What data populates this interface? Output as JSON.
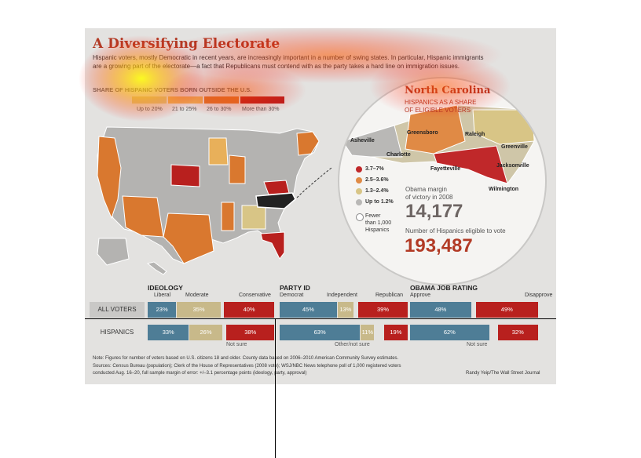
{
  "title": "A Diversifying Electorate",
  "intro": [
    "Hispanic voters, mostly Democratic in recent years, are increasingly important in a number of swing states. In particular, Hispanic immigrants",
    "are a growing part of the electorate—a fact that Republicans must contend with as the party takes a hard line on immigration issues."
  ],
  "map_legend": {
    "title": "SHARE OF HISPANIC VOTERS BORN OUTSIDE THE U.S.",
    "items": [
      {
        "label": "Up to 20%",
        "color": "#d8c586"
      },
      {
        "label": "21 to 25%",
        "color": "#e8b05a"
      },
      {
        "label": "26 to 30%",
        "color": "#d9782f"
      },
      {
        "label": "More than 30%",
        "color": "#b8201e"
      }
    ]
  },
  "north_carolina": {
    "title": "North Carolina",
    "subtitle": [
      "HISPANICS AS A SHARE",
      "OF ELIGIBLE VOTERS"
    ],
    "cities": [
      "Asheville",
      "Greensboro",
      "Raleigh",
      "Greenville",
      "Charlotte",
      "Fayetteville",
      "Jacksonville",
      "Wilmington"
    ],
    "legend": [
      {
        "label": "3.7–7%",
        "color": "#c0282a"
      },
      {
        "label": "2.5–3.6%",
        "color": "#e08a45"
      },
      {
        "label": "1.3–2.4%",
        "color": "#d8c586"
      },
      {
        "label": "Up to 1.2%",
        "color": "#b9b8b6"
      },
      {
        "label": "Fewer",
        "color": "#ffffff"
      }
    ],
    "fewer_extra": [
      "than 1,000",
      "Hispanics"
    ],
    "obama_margin_label": [
      "Obama margin",
      "of victory in 2008"
    ],
    "obama_margin_value": "14,177",
    "eligible_label": "Number of Hispanics eligible to vote",
    "eligible_value": "193,487"
  },
  "chart_data": [
    {
      "type": "bar",
      "title": "IDEOLOGY",
      "categories": [
        "ALL VOTERS",
        "HISPANICS"
      ],
      "series": [
        {
          "name": "Liberal",
          "values": [
            23,
            33
          ],
          "color": "#4e7d96"
        },
        {
          "name": "Moderate",
          "values": [
            35,
            26
          ],
          "color": "#c8b98a"
        },
        {
          "name": "Conservative",
          "values": [
            40,
            38
          ],
          "color": "#b8201e"
        }
      ],
      "labels": [
        [
          "23%",
          "35%",
          "40%"
        ],
        [
          "33%",
          "26%",
          "38%"
        ]
      ],
      "not_sure": "Not sure"
    },
    {
      "type": "bar",
      "title": "PARTY ID",
      "categories": [
        "ALL VOTERS",
        "HISPANICS"
      ],
      "series": [
        {
          "name": "Democrat",
          "values": [
            45,
            63
          ],
          "color": "#4e7d96"
        },
        {
          "name": "Independent",
          "values": [
            13,
            11
          ],
          "color": "#c8b98a"
        },
        {
          "name": "Republican",
          "values": [
            39,
            19
          ],
          "color": "#b8201e"
        }
      ],
      "labels": [
        [
          "45%",
          "13%",
          "39%"
        ],
        [
          "63%",
          "11%",
          "19%"
        ]
      ],
      "not_sure": "Other/not sure"
    },
    {
      "type": "bar",
      "title": "OBAMA JOB RATING",
      "categories": [
        "ALL VOTERS",
        "HISPANICS"
      ],
      "series": [
        {
          "name": "Approve",
          "values": [
            48,
            62
          ],
          "color": "#4e7d96"
        },
        {
          "name": "Disapprove",
          "values": [
            49,
            32
          ],
          "color": "#b8201e"
        }
      ],
      "labels": [
        [
          "48%",
          "49%"
        ],
        [
          "62%",
          "32%"
        ]
      ],
      "not_sure": "Not sure"
    }
  ],
  "footer": {
    "note": "Note: Figures for number of voters based on U.S. citizens 18 and older. County data based on 2006–2010 American Community Survey estimates.",
    "sources1": "Sources: Census Bureau (population); Clerk of the House of Representatives (2008 vote); WSJ/NBC News telephone poll of 1,000 registered voters",
    "sources2": "conducted Aug. 16–20, full sample margin of error: +/–3.1 percentage points (ideology, party, approval)",
    "credit": "Randy Yeip/The Wall Street Journal"
  }
}
